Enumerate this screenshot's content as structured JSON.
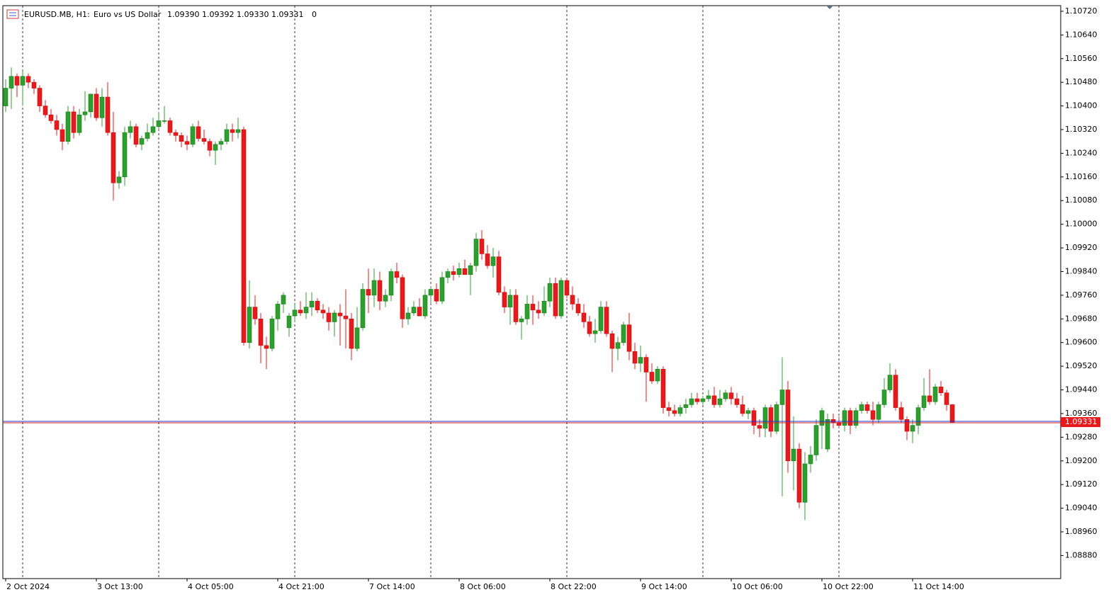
{
  "chart_data": {
    "type": "candlestick",
    "symbol": "EURUSD.MB, H1:",
    "description": "Euro vs US Dollar",
    "quote": "1.09390 1.09392 1.09330 1.09331",
    "volume": "0",
    "up_color": "#2ca02c",
    "down_color": "#e8191b",
    "current_price": {
      "value": 1.09331,
      "label": "1.09331"
    },
    "ylim": [
      1.08802,
      1.10739
    ],
    "yticks": [
      {
        "value": 1.1072,
        "label": "1.10720"
      },
      {
        "value": 1.1064,
        "label": "1.10640"
      },
      {
        "value": 1.1056,
        "label": "1.10560"
      },
      {
        "value": 1.1048,
        "label": "1.10480"
      },
      {
        "value": 1.104,
        "label": "1.10400"
      },
      {
        "value": 1.1032,
        "label": "1.10320"
      },
      {
        "value": 1.1024,
        "label": "1.10240"
      },
      {
        "value": 1.1016,
        "label": "1.10160"
      },
      {
        "value": 1.1008,
        "label": "1.10080"
      },
      {
        "value": 1.1,
        "label": "1.10000"
      },
      {
        "value": 1.0992,
        "label": "1.09920"
      },
      {
        "value": 1.0984,
        "label": "1.09840"
      },
      {
        "value": 1.0976,
        "label": "1.09760"
      },
      {
        "value": 1.0968,
        "label": "1.09680"
      },
      {
        "value": 1.096,
        "label": "1.09600"
      },
      {
        "value": 1.0952,
        "label": "1.09520"
      },
      {
        "value": 1.0944,
        "label": "1.09440"
      },
      {
        "value": 1.0936,
        "label": "1.09360"
      },
      {
        "value": 1.0928,
        "label": "1.09280"
      },
      {
        "value": 1.092,
        "label": "1.09200"
      },
      {
        "value": 1.0912,
        "label": "1.09120"
      },
      {
        "value": 1.0904,
        "label": "1.09040"
      },
      {
        "value": 1.0896,
        "label": "1.08960"
      },
      {
        "value": 1.0888,
        "label": "1.08880"
      }
    ],
    "categories": [
      "2 Oct 2024",
      null,
      null,
      null,
      null,
      null,
      null,
      null,
      null,
      null,
      null,
      null,
      null,
      null,
      null,
      null,
      "3 Oct 13:00",
      null,
      null,
      null,
      null,
      null,
      null,
      null,
      null,
      null,
      null,
      null,
      null,
      null,
      null,
      null,
      "4 Oct 05:00",
      null,
      null,
      null,
      null,
      null,
      null,
      null,
      null,
      null,
      null,
      null,
      null,
      null,
      null,
      null,
      "4 Oct 21:00",
      null,
      null,
      null,
      null,
      null,
      null,
      null,
      null,
      null,
      null,
      null,
      null,
      null,
      null,
      null,
      "7 Oct 14:00",
      null,
      null,
      null,
      null,
      null,
      null,
      null,
      null,
      null,
      null,
      null,
      null,
      null,
      null,
      null,
      "8 Oct 06:00",
      null,
      null,
      null,
      null,
      null,
      null,
      null,
      null,
      null,
      null,
      null,
      null,
      null,
      null,
      null,
      "8 Oct 22:00",
      null,
      null,
      null,
      null,
      null,
      null,
      null,
      null,
      null,
      null,
      null,
      null,
      null,
      null,
      null,
      "9 Oct 14:00",
      null,
      null,
      null,
      null,
      null,
      null,
      null,
      null,
      null,
      null,
      null,
      null,
      null,
      null,
      null,
      "10 Oct 06:00",
      null,
      null,
      null,
      null,
      null,
      null,
      null,
      null,
      null,
      null,
      null,
      null,
      null,
      null,
      null,
      "10 Oct 22:00",
      null,
      null,
      null,
      null,
      null,
      null,
      null,
      null,
      null,
      null,
      null,
      null,
      null,
      null,
      null,
      "11 Oct 14:00",
      null,
      null,
      null,
      null,
      null,
      null,
      null
    ],
    "ohlc": [
      [
        1.104,
        1.1049,
        1.1038,
        1.1046
      ],
      [
        1.1046,
        1.1053,
        1.1039,
        1.105
      ],
      [
        1.105,
        1.1051,
        1.1043,
        1.1047
      ],
      [
        1.1047,
        1.1052,
        1.104,
        1.105
      ],
      [
        1.105,
        1.1051,
        1.1046,
        1.1048
      ],
      [
        1.1048,
        1.1049,
        1.1044,
        1.1046
      ],
      [
        1.1046,
        1.1047,
        1.1038,
        1.104
      ],
      [
        1.104,
        1.1042,
        1.1036,
        1.1037
      ],
      [
        1.1037,
        1.1039,
        1.1034,
        1.1035
      ],
      [
        1.1035,
        1.1037,
        1.103,
        1.1032
      ],
      [
        1.1032,
        1.1034,
        1.1025,
        1.1028
      ],
      [
        1.1028,
        1.104,
        1.1027,
        1.1038
      ],
      [
        1.1038,
        1.104,
        1.1029,
        1.1031
      ],
      [
        1.1031,
        1.1039,
        1.103,
        1.1037
      ],
      [
        1.1037,
        1.1045,
        1.1035,
        1.1038
      ],
      [
        1.1038,
        1.1044,
        1.1036,
        1.1044
      ],
      [
        1.1044,
        1.1046,
        1.1035,
        1.1036
      ],
      [
        1.1036,
        1.1046,
        1.1033,
        1.1043
      ],
      [
        1.1043,
        1.1048,
        1.103,
        1.1031
      ],
      [
        1.1031,
        1.1038,
        1.1008,
        1.1014
      ],
      [
        1.1014,
        1.1018,
        1.1012,
        1.1016
      ],
      [
        1.1016,
        1.1033,
        1.1013,
        1.1031
      ],
      [
        1.1031,
        1.1035,
        1.1029,
        1.1033
      ],
      [
        1.1033,
        1.1034,
        1.1026,
        1.1027
      ],
      [
        1.1027,
        1.103,
        1.1025,
        1.1029
      ],
      [
        1.1029,
        1.1034,
        1.1028,
        1.1031
      ],
      [
        1.1031,
        1.1036,
        1.103,
        1.1033
      ],
      [
        1.1033,
        1.1038,
        1.1032,
        1.1035
      ],
      [
        1.1035,
        1.104,
        1.1034,
        1.1035
      ],
      [
        1.1035,
        1.1036,
        1.103,
        1.1031
      ],
      [
        1.1031,
        1.1032,
        1.1028,
        1.103
      ],
      [
        1.103,
        1.1031,
        1.1026,
        1.1028
      ],
      [
        1.1028,
        1.103,
        1.1025,
        1.1027
      ],
      [
        1.1027,
        1.1034,
        1.1026,
        1.1033
      ],
      [
        1.1033,
        1.1035,
        1.1028,
        1.1029
      ],
      [
        1.1029,
        1.1032,
        1.1027,
        1.1028
      ],
      [
        1.1028,
        1.1029,
        1.1023,
        1.1025
      ],
      [
        1.1025,
        1.1028,
        1.102,
        1.1027
      ],
      [
        1.1027,
        1.1029,
        1.1025,
        1.1028
      ],
      [
        1.1028,
        1.1034,
        1.1027,
        1.1032
      ],
      [
        1.1032,
        1.1034,
        1.1028,
        1.1031
      ],
      [
        1.1031,
        1.1036,
        1.1029,
        1.1032
      ],
      [
        1.1032,
        1.1033,
        1.0959,
        1.096
      ],
      [
        1.096,
        1.0981,
        1.0958,
        1.0972
      ],
      [
        1.0972,
        1.0976,
        1.0966,
        1.0968
      ],
      [
        1.0968,
        1.097,
        1.0953,
        1.0959
      ],
      [
        1.0959,
        1.0962,
        1.0951,
        1.0958
      ],
      [
        1.0958,
        1.0969,
        1.0957,
        1.0968
      ],
      [
        1.0968,
        1.0974,
        1.0964,
        1.0973
      ],
      [
        1.0973,
        1.0977,
        1.097,
        1.0976
      ],
      [
        1.0965,
        1.097,
        1.0962,
        1.0969
      ],
      [
        1.0969,
        1.0973,
        1.0967,
        1.0971
      ],
      [
        1.0971,
        1.0974,
        1.0969,
        1.097
      ],
      [
        1.097,
        1.0977,
        1.0968,
        1.0972
      ],
      [
        1.0972,
        1.0977,
        1.0969,
        1.0974
      ],
      [
        1.0974,
        1.0975,
        1.097,
        1.0971
      ],
      [
        1.0971,
        1.0973,
        1.0968,
        1.097
      ],
      [
        1.097,
        1.0972,
        1.0964,
        1.0967
      ],
      [
        1.0967,
        1.0971,
        1.0962,
        1.097
      ],
      [
        1.097,
        1.0973,
        1.0959,
        1.0969
      ],
      [
        1.0969,
        1.0978,
        1.0958,
        1.0968
      ],
      [
        1.0968,
        1.097,
        1.0954,
        1.0958
      ],
      [
        1.0958,
        1.0972,
        1.0957,
        1.0965
      ],
      [
        1.0965,
        1.098,
        1.0964,
        1.0978
      ],
      [
        1.0978,
        1.0985,
        1.097,
        1.0976
      ],
      [
        1.0976,
        1.0985,
        1.0972,
        1.0981
      ],
      [
        1.0981,
        1.0984,
        1.0971,
        1.0974
      ],
      [
        1.0974,
        1.0978,
        1.0972,
        1.0976
      ],
      [
        1.0976,
        1.0985,
        1.0974,
        1.0984
      ],
      [
        1.0984,
        1.0987,
        1.098,
        1.0982
      ],
      [
        1.0982,
        1.0983,
        1.0965,
        1.0968
      ],
      [
        1.0968,
        1.0972,
        1.0966,
        1.097
      ],
      [
        1.097,
        1.0974,
        1.0969,
        1.0972
      ],
      [
        1.0972,
        1.0975,
        1.0969,
        1.0969
      ],
      [
        1.0969,
        1.0978,
        1.0968,
        1.0976
      ],
      [
        1.0976,
        1.0979,
        1.0973,
        1.0978
      ],
      [
        1.0978,
        1.098,
        1.0973,
        1.0974
      ],
      [
        1.0974,
        1.0984,
        1.0973,
        1.0982
      ],
      [
        1.0982,
        1.0985,
        1.098,
        1.0984
      ],
      [
        1.0984,
        1.0986,
        1.0981,
        1.0983
      ],
      [
        1.0983,
        1.0987,
        1.0982,
        1.0985
      ],
      [
        1.0985,
        1.0988,
        1.0983,
        1.0983
      ],
      [
        1.0983,
        1.0987,
        1.0976,
        1.0986
      ],
      [
        1.0986,
        1.0997,
        1.0984,
        1.0995
      ],
      [
        1.0995,
        1.0998,
        1.0988,
        1.099
      ],
      [
        1.099,
        1.0993,
        1.0985,
        1.0986
      ],
      [
        1.0986,
        1.0992,
        1.0982,
        1.0989
      ],
      [
        1.0989,
        1.0991,
        1.0976,
        1.0977
      ],
      [
        1.0977,
        1.0979,
        1.097,
        1.0972
      ],
      [
        1.0972,
        1.0978,
        1.0966,
        1.0976
      ],
      [
        1.0976,
        1.0978,
        1.0966,
        1.0967
      ],
      [
        1.0967,
        1.0969,
        1.0961,
        1.0968
      ],
      [
        1.0968,
        1.0976,
        1.0966,
        1.0973
      ],
      [
        1.0973,
        1.0976,
        1.0966,
        1.0971
      ],
      [
        1.0971,
        1.0974,
        1.0968,
        1.097
      ],
      [
        1.097,
        1.0979,
        1.0969,
        1.0974
      ],
      [
        1.0974,
        1.0982,
        1.0972,
        1.098
      ],
      [
        1.098,
        1.0982,
        1.0968,
        1.0969
      ],
      [
        1.0969,
        1.0982,
        1.0968,
        1.0981
      ],
      [
        1.0981,
        1.0982,
        1.0975,
        1.0976
      ],
      [
        1.0976,
        1.0979,
        1.0971,
        1.0973
      ],
      [
        1.0973,
        1.0975,
        1.0969,
        1.097
      ],
      [
        1.097,
        1.0973,
        1.0965,
        1.0967
      ],
      [
        1.0967,
        1.0969,
        1.0962,
        1.0963
      ],
      [
        1.0963,
        1.0968,
        1.096,
        1.0964
      ],
      [
        1.0964,
        1.0974,
        1.0963,
        1.0972
      ],
      [
        1.0972,
        1.0974,
        1.0962,
        1.0963
      ],
      [
        1.0963,
        1.0964,
        1.095,
        1.0958
      ],
      [
        1.0958,
        1.0962,
        1.0954,
        1.096
      ],
      [
        1.096,
        1.0967,
        1.0959,
        1.0966
      ],
      [
        1.0966,
        1.097,
        1.0954,
        1.0957
      ],
      [
        1.0957,
        1.096,
        1.0951,
        1.0953
      ],
      [
        1.0953,
        1.0959,
        1.095,
        1.0955
      ],
      [
        1.0955,
        1.0956,
        1.094,
        1.095
      ],
      [
        1.095,
        1.0953,
        1.0946,
        1.0947
      ],
      [
        1.0947,
        1.0952,
        1.0946,
        1.0951
      ],
      [
        1.0951,
        1.0952,
        1.0936,
        1.0938
      ],
      [
        1.0938,
        1.094,
        1.0935,
        1.0937
      ],
      [
        1.0937,
        1.0939,
        1.0935,
        1.0936
      ],
      [
        1.0936,
        1.0939,
        1.0935,
        1.0938
      ],
      [
        1.0938,
        1.0941,
        1.0936,
        1.0939
      ],
      [
        1.0939,
        1.0943,
        1.0938,
        1.0941
      ],
      [
        1.0941,
        1.0943,
        1.0939,
        1.094
      ],
      [
        1.094,
        1.0942,
        1.0939,
        1.0941
      ],
      [
        1.0941,
        1.0944,
        1.094,
        1.0942
      ],
      [
        1.0942,
        1.0945,
        1.0938,
        1.0939
      ],
      [
        1.0939,
        1.0944,
        1.0938,
        1.0941
      ],
      [
        1.0941,
        1.0944,
        1.094,
        1.0943
      ],
      [
        1.0943,
        1.0945,
        1.0939,
        1.0941
      ],
      [
        1.0941,
        1.0943,
        1.0938,
        1.0939
      ],
      [
        1.0939,
        1.0942,
        1.0935,
        1.0936
      ],
      [
        1.0936,
        1.0938,
        1.0934,
        1.0937
      ],
      [
        1.0937,
        1.0938,
        1.0929,
        1.0932
      ],
      [
        1.0932,
        1.0934,
        1.0928,
        1.0931
      ],
      [
        1.0931,
        1.0939,
        1.0928,
        1.0938
      ],
      [
        1.0938,
        1.0939,
        1.0928,
        1.093
      ],
      [
        1.093,
        1.094,
        1.0929,
        1.0939
      ],
      [
        1.0939,
        1.0955,
        1.0908,
        1.0944
      ],
      [
        1.0944,
        1.0947,
        1.0916,
        1.092
      ],
      [
        1.092,
        1.0935,
        1.091,
        1.0924
      ],
      [
        1.0924,
        1.0926,
        1.0904,
        1.0906
      ],
      [
        1.0906,
        1.0923,
        1.09,
        1.0919
      ],
      [
        1.0919,
        1.0925,
        1.0916,
        1.0922
      ],
      [
        1.0922,
        1.0934,
        1.092,
        1.0932
      ],
      [
        1.0932,
        1.0938,
        1.0924,
        1.0937
      ],
      [
        1.0924,
        1.0936,
        1.0923,
        1.0934
      ],
      [
        1.0934,
        1.0936,
        1.0931,
        1.0933
      ],
      [
        1.0933,
        1.0935,
        1.0931,
        1.0932
      ],
      [
        1.0932,
        1.0938,
        1.093,
        1.0937
      ],
      [
        1.0937,
        1.0938,
        1.0929,
        1.0932
      ],
      [
        1.0932,
        1.0938,
        1.0931,
        1.0937
      ],
      [
        1.0937,
        1.094,
        1.0936,
        1.0939
      ],
      [
        1.0939,
        1.094,
        1.0936,
        1.0937
      ],
      [
        1.0937,
        1.094,
        1.0932,
        1.0934
      ],
      [
        1.0934,
        1.094,
        1.0933,
        1.0939
      ],
      [
        1.0939,
        1.0948,
        1.0938,
        1.0944
      ],
      [
        1.0944,
        1.0953,
        1.0943,
        1.0949
      ],
      [
        1.0949,
        1.0951,
        1.0937,
        1.0938
      ],
      [
        1.0938,
        1.094,
        1.0933,
        1.0934
      ],
      [
        1.0934,
        1.0935,
        1.0927,
        1.093
      ],
      [
        1.093,
        1.0934,
        1.0926,
        1.0932
      ],
      [
        1.0932,
        1.0939,
        1.0929,
        1.0938
      ],
      [
        1.0938,
        1.0948,
        1.0937,
        1.0942
      ],
      [
        1.0942,
        1.0951,
        1.0939,
        1.094
      ],
      [
        1.094,
        1.0946,
        1.0939,
        1.0945
      ],
      [
        1.0945,
        1.0947,
        1.0942,
        1.0943
      ],
      [
        1.0943,
        1.0944,
        1.0937,
        1.0939
      ],
      [
        1.0939,
        1.09392,
        1.0933,
        1.09331
      ]
    ]
  }
}
